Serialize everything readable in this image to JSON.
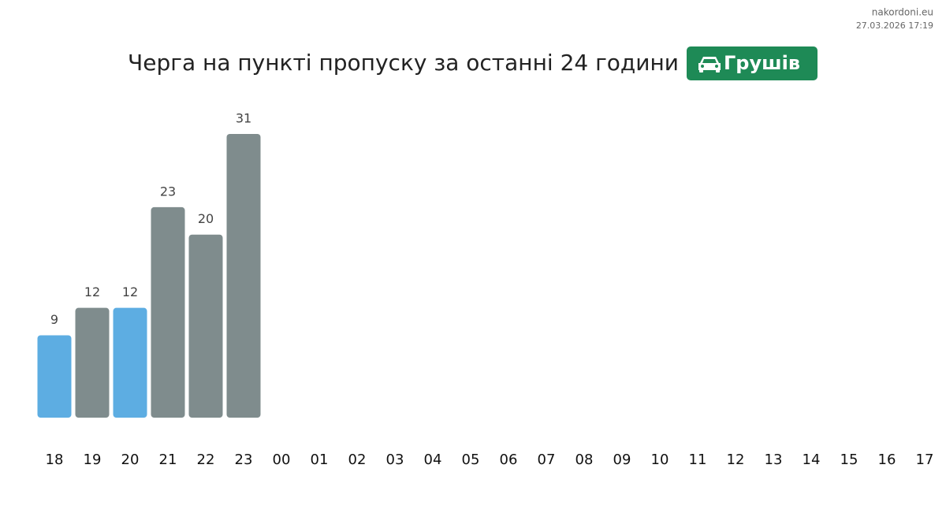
{
  "source": "nakordoni.eu",
  "timestamp": "27.03.2026 17:19",
  "chart_data": {
    "type": "bar",
    "title": "Черга на пункті пропуску за останні 24 години",
    "badge": "Грушів",
    "categories": [
      "18",
      "19",
      "20",
      "21",
      "22",
      "23",
      "00",
      "01",
      "02",
      "03",
      "04",
      "05",
      "06",
      "07",
      "08",
      "09",
      "10",
      "11",
      "12",
      "13",
      "14",
      "15",
      "16",
      "17"
    ],
    "values": [
      9,
      12,
      12,
      23,
      20,
      31,
      null,
      null,
      null,
      null,
      null,
      null,
      null,
      null,
      null,
      null,
      null,
      null,
      null,
      null,
      null,
      null,
      null,
      null
    ],
    "colors": [
      "#5dade2",
      "#7f8c8d",
      "#5dade2",
      "#7f8c8d",
      "#7f8c8d",
      "#7f8c8d",
      null,
      null,
      null,
      null,
      null,
      null,
      null,
      null,
      null,
      null,
      null,
      null,
      null,
      null,
      null,
      null,
      null,
      null
    ]
  }
}
